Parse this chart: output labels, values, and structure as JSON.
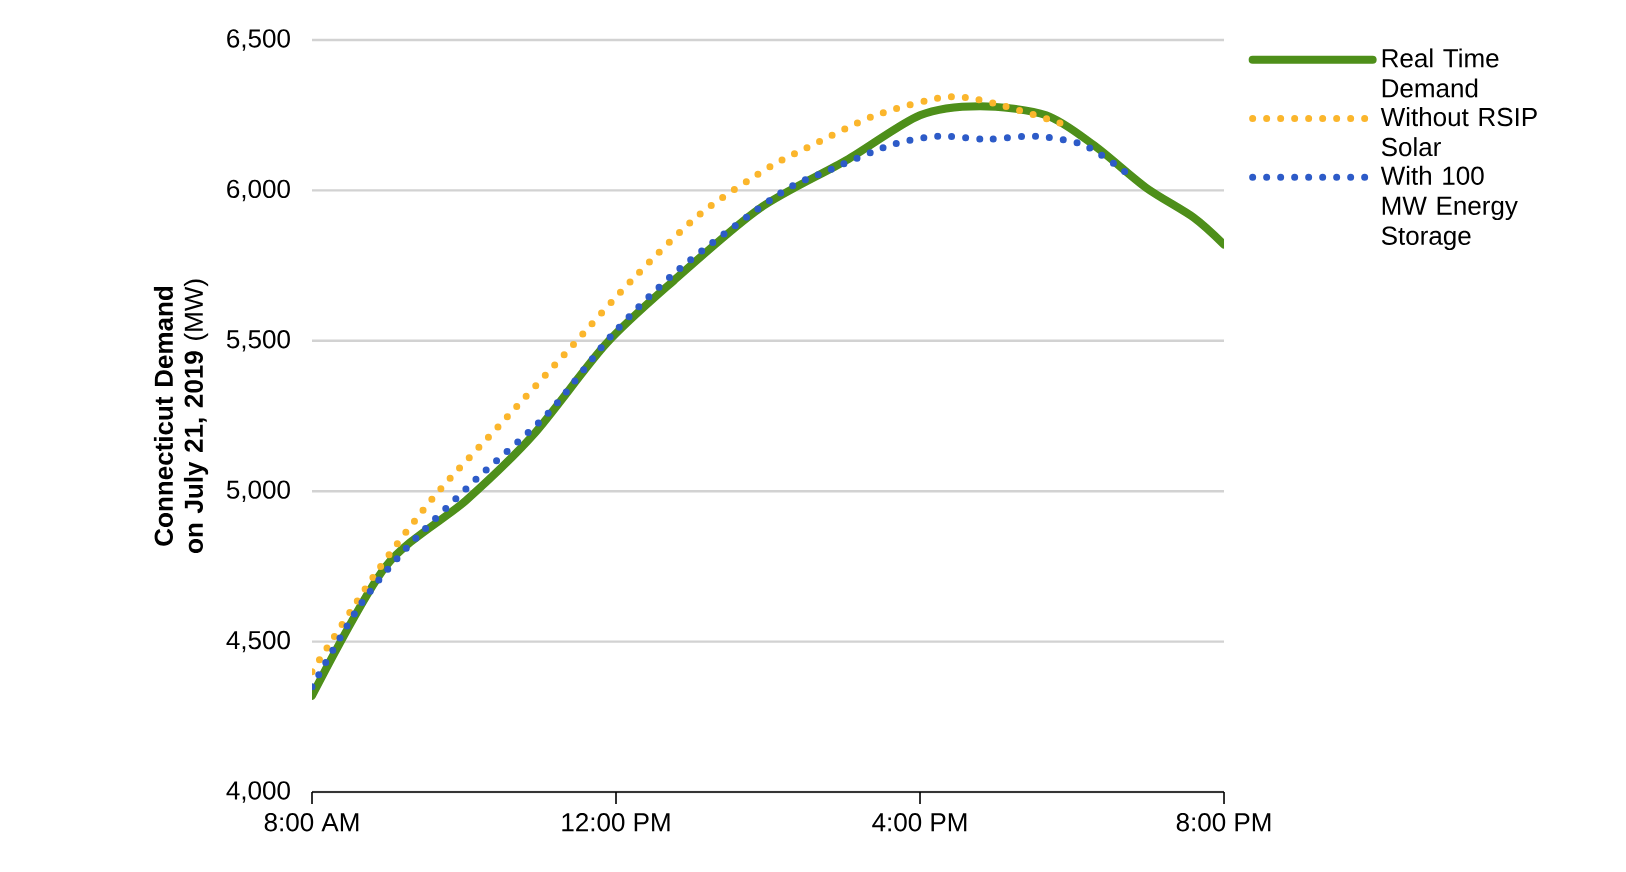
{
  "chart_data": {
    "type": "line",
    "ylabel": "**Connecticut Demand on July 21, 2019** (MW)",
    "xlim": [
      8,
      20
    ],
    "ylim": [
      4000,
      6500
    ],
    "xticks": [
      {
        "value": 8,
        "label": "8:00 AM"
      },
      {
        "value": 12,
        "label": "12:00 PM"
      },
      {
        "value": 16,
        "label": "4:00 PM"
      },
      {
        "value": 20,
        "label": "8:00 PM"
      }
    ],
    "yticks": [
      {
        "value": 4000,
        "label": "4,000"
      },
      {
        "value": 4500,
        "label": "4,500"
      },
      {
        "value": 5000,
        "label": "5,000"
      },
      {
        "value": 5500,
        "label": "5,500"
      },
      {
        "value": 6000,
        "label": "6,000"
      },
      {
        "value": 6500,
        "label": "6,500"
      }
    ],
    "grid": "y",
    "legend": "right",
    "marker": "none",
    "series": [
      {
        "name": "Real Time Demand",
        "color": "#4e8f1a",
        "line_style": "solid",
        "x": [
          8.0,
          8.97,
          10.03,
          10.92,
          11.87,
          12.76,
          13.89,
          15.03,
          16.0,
          16.79,
          17.66,
          18.29,
          18.97,
          19.6,
          20.0
        ],
        "values": [
          4320,
          4750,
          4970,
          5190,
          5490,
          5700,
          5940,
          6100,
          6250,
          6280,
          6250,
          6150,
          6010,
          5910,
          5820
        ]
      },
      {
        "name": "Without RSIP Solar",
        "color": "#fbb62c",
        "line_style": "dotted",
        "x": [
          8.0,
          8.82,
          9.6,
          10.47,
          11.34,
          12.24,
          13.1,
          13.97,
          14.5,
          15.42,
          16.34,
          16.97,
          17.89
        ],
        "values": [
          4400,
          4720,
          4980,
          5220,
          5460,
          5710,
          5920,
          6070,
          6140,
          6250,
          6310,
          6290,
          6220
        ]
      },
      {
        "name": "With 100 MW Energy Storage",
        "color": "#2d5bc8",
        "line_style": "dotted",
        "x": [
          8.0,
          8.63,
          9.24,
          10.16,
          11.11,
          11.95,
          12.84,
          14.16,
          14.74,
          15.61,
          16.24,
          16.87,
          17.53,
          18.16,
          18.71
        ],
        "values": [
          4350,
          4620,
          4810,
          5040,
          5260,
          5520,
          5740,
          5990,
          6060,
          6150,
          6180,
          6170,
          6180,
          6150,
          6060
        ]
      }
    ]
  }
}
